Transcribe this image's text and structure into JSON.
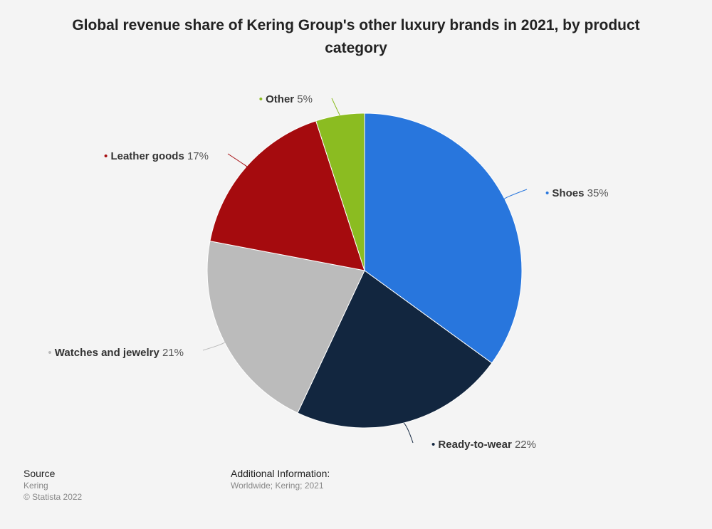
{
  "chart_data": {
    "type": "pie",
    "title": "Global revenue share of Kering Group's other luxury brands in 2021, by product category",
    "unit": "%",
    "slices": [
      {
        "label": "Shoes",
        "value": 35,
        "value_label": "35%",
        "color": "#2876dd"
      },
      {
        "label": "Ready-to-wear",
        "value": 22,
        "value_label": "22%",
        "color": "#12263f"
      },
      {
        "label": "Watches and jewelry",
        "value": 21,
        "value_label": "21%",
        "color": "#bbbbbb"
      },
      {
        "label": "Leather goods",
        "value": 17,
        "value_label": "17%",
        "color": "#a50b0e"
      },
      {
        "label": "Other",
        "value": 5,
        "value_label": "5%",
        "color": "#8bbc21"
      }
    ]
  },
  "footer": {
    "source_heading": "Source",
    "source_name": "Kering",
    "copyright": "© Statista 2022",
    "info_heading": "Additional Information:",
    "info_text": "Worldwide; Kering; 2021"
  }
}
